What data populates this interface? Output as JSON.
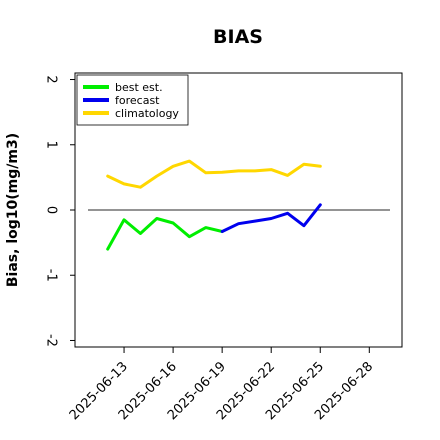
{
  "chart_data": {
    "type": "line",
    "title": "BIAS",
    "xlabel": "",
    "ylabel": "Bias, log10(mg/m3)",
    "ylim": [
      -2.1,
      2.1
    ],
    "yticks": [
      -2,
      -1,
      0,
      1,
      2
    ],
    "ytick_labels": [
      "-2",
      "-1",
      "0",
      "1",
      "2"
    ],
    "xlim": [
      "2025-06-10",
      "2025-06-30"
    ],
    "xticks": [
      {
        "date": "2025-06-13",
        "label": "2025-06-13",
        "color": "#000000"
      },
      {
        "date": "2025-06-16",
        "label": "2025-06-16",
        "color": "#000000"
      },
      {
        "date": "2025-06-19",
        "label": "2025-06-19",
        "color": "#2e8b2e"
      },
      {
        "date": "2025-06-22",
        "label": "2025-06-22",
        "color": "#000000"
      },
      {
        "date": "2025-06-25",
        "label": "2025-06-25",
        "color": "#000000"
      },
      {
        "date": "2025-06-28",
        "label": "2025-06-28",
        "color": "#000000"
      }
    ],
    "zero_line": 0,
    "grid": false,
    "legend_position": "top-left",
    "series": [
      {
        "name": "best est.",
        "color": "#00ee00",
        "x": [
          "2025-06-12",
          "2025-06-13",
          "2025-06-14",
          "2025-06-15",
          "2025-06-16",
          "2025-06-17",
          "2025-06-18",
          "2025-06-19"
        ],
        "y": [
          -0.6,
          -0.15,
          -0.36,
          -0.13,
          -0.2,
          -0.41,
          -0.27,
          -0.33
        ]
      },
      {
        "name": "forecast",
        "color": "#0000ee",
        "x": [
          "2025-06-19",
          "2025-06-20",
          "2025-06-21",
          "2025-06-22",
          "2025-06-23",
          "2025-06-24",
          "2025-06-25"
        ],
        "y": [
          -0.33,
          -0.21,
          -0.17,
          -0.13,
          -0.05,
          -0.24,
          0.08
        ]
      },
      {
        "name": "climatology",
        "color": "#ffd700",
        "x": [
          "2025-06-12",
          "2025-06-13",
          "2025-06-14",
          "2025-06-15",
          "2025-06-16",
          "2025-06-17",
          "2025-06-18",
          "2025-06-19",
          "2025-06-20",
          "2025-06-21",
          "2025-06-22",
          "2025-06-23",
          "2025-06-24",
          "2025-06-25"
        ],
        "y": [
          0.52,
          0.4,
          0.35,
          0.52,
          0.67,
          0.75,
          0.57,
          0.58,
          0.6,
          0.6,
          0.62,
          0.53,
          0.7,
          0.67
        ]
      }
    ]
  }
}
